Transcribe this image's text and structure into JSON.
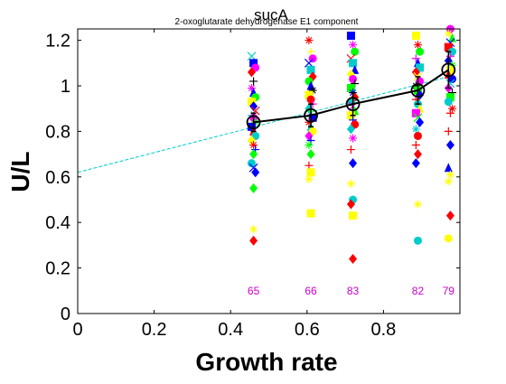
{
  "chart_data": {
    "type": "scatter",
    "title": "sucA",
    "subtitle": "2-oxoglutarate dehydrogenase E1 component",
    "xlabel": "Growth rate",
    "ylabel": "U/L",
    "xlim": [
      0,
      1
    ],
    "ylim": [
      0,
      1.25
    ],
    "xticks": [
      0,
      0.2,
      0.4,
      0.6,
      0.8
    ],
    "xtick_labels": [
      "0",
      "0.2",
      "0.4",
      "0.6",
      "0.8"
    ],
    "yticks": [
      0,
      0.2,
      0.4,
      0.6,
      0.8,
      1,
      1.2
    ],
    "ytick_labels": [
      "0",
      "0.2",
      "0.4",
      "0.6",
      "0.8",
      "1",
      "1.2"
    ],
    "grid": false,
    "colors": {
      "mean_line": "#000000",
      "fit_line": "#00cccc",
      "count_labels": "#cc00cc",
      "axis": "#000000"
    },
    "mean_series": {
      "x": [
        0.46,
        0.61,
        0.72,
        0.89,
        0.97
      ],
      "y": [
        0.84,
        0.87,
        0.92,
        0.98,
        1.07
      ],
      "err": [
        0.04,
        0.05,
        0.05,
        0.06,
        0.08
      ]
    },
    "fit_line": {
      "x": [
        0,
        0.97
      ],
      "y": [
        0.62,
        1.04
      ]
    },
    "counts": [
      {
        "x": 0.46,
        "label": "65"
      },
      {
        "x": 0.61,
        "label": "66"
      },
      {
        "x": 0.72,
        "label": "83"
      },
      {
        "x": 0.89,
        "label": "82"
      },
      {
        "x": 0.97,
        "label": "79"
      }
    ],
    "count_label_y": 0.1,
    "scatter_points": [
      {
        "x": 0.455,
        "y": 1.13,
        "m": "x",
        "c": "#00cccc"
      },
      {
        "x": 0.46,
        "y": 1.1,
        "m": "s",
        "c": "#0000ff"
      },
      {
        "x": 0.465,
        "y": 1.08,
        "m": "o",
        "c": "#ff00ff"
      },
      {
        "x": 0.455,
        "y": 1.06,
        "m": "d",
        "c": "#ff0000"
      },
      {
        "x": 0.46,
        "y": 1.02,
        "m": "+",
        "c": "#000000"
      },
      {
        "x": 0.455,
        "y": 0.99,
        "m": "*",
        "c": "#ff00ff"
      },
      {
        "x": 0.46,
        "y": 0.97,
        "m": "^",
        "c": "#0000ff"
      },
      {
        "x": 0.465,
        "y": 0.95,
        "m": "o",
        "c": "#00ff00"
      },
      {
        "x": 0.455,
        "y": 0.93,
        "m": "s",
        "c": "#ffff00"
      },
      {
        "x": 0.46,
        "y": 0.91,
        "m": "d",
        "c": "#0000ff"
      },
      {
        "x": 0.465,
        "y": 0.89,
        "m": "x",
        "c": "#ff0000"
      },
      {
        "x": 0.455,
        "y": 0.87,
        "m": "+",
        "c": "#00cccc"
      },
      {
        "x": 0.46,
        "y": 0.86,
        "m": "o",
        "c": "#ff00ff"
      },
      {
        "x": 0.465,
        "y": 0.84,
        "m": "*",
        "c": "#00ff00"
      },
      {
        "x": 0.455,
        "y": 0.82,
        "m": "s",
        "c": "#0000ff"
      },
      {
        "x": 0.46,
        "y": 0.8,
        "m": "^",
        "c": "#ff0000"
      },
      {
        "x": 0.465,
        "y": 0.78,
        "m": "o",
        "c": "#00cccc"
      },
      {
        "x": 0.455,
        "y": 0.76,
        "m": "d",
        "c": "#ffff00"
      },
      {
        "x": 0.46,
        "y": 0.74,
        "m": "*",
        "c": "#ff0000"
      },
      {
        "x": 0.465,
        "y": 0.72,
        "m": "+",
        "c": "#0000ff"
      },
      {
        "x": 0.46,
        "y": 0.7,
        "m": "d",
        "c": "#00ff00"
      },
      {
        "x": 0.455,
        "y": 0.66,
        "m": "o",
        "c": "#00cccc"
      },
      {
        "x": 0.46,
        "y": 0.64,
        "m": "x",
        "c": "#0000ff"
      },
      {
        "x": 0.465,
        "y": 0.62,
        "m": "d",
        "c": "#0000ff"
      },
      {
        "x": 0.46,
        "y": 0.55,
        "m": "d",
        "c": "#00ff00"
      },
      {
        "x": 0.46,
        "y": 0.37,
        "m": "*",
        "c": "#ffff00"
      },
      {
        "x": 0.46,
        "y": 0.32,
        "m": "d",
        "c": "#ff0000"
      },
      {
        "x": 0.605,
        "y": 1.2,
        "m": "*",
        "c": "#ff0000"
      },
      {
        "x": 0.61,
        "y": 1.15,
        "m": "+",
        "c": "#ffff00"
      },
      {
        "x": 0.615,
        "y": 1.12,
        "m": "o",
        "c": "#ff00ff"
      },
      {
        "x": 0.605,
        "y": 1.1,
        "m": "x",
        "c": "#0000ff"
      },
      {
        "x": 0.61,
        "y": 1.07,
        "m": "s",
        "c": "#00cccc"
      },
      {
        "x": 0.615,
        "y": 1.04,
        "m": "d",
        "c": "#ff0000"
      },
      {
        "x": 0.605,
        "y": 1.02,
        "m": "o",
        "c": "#00ff00"
      },
      {
        "x": 0.61,
        "y": 1.0,
        "m": "^",
        "c": "#0000ff"
      },
      {
        "x": 0.615,
        "y": 0.98,
        "m": "*",
        "c": "#000000"
      },
      {
        "x": 0.605,
        "y": 0.96,
        "m": "s",
        "c": "#ffff00"
      },
      {
        "x": 0.61,
        "y": 0.94,
        "m": "o",
        "c": "#ff0000"
      },
      {
        "x": 0.615,
        "y": 0.92,
        "m": "+",
        "c": "#ff00ff"
      },
      {
        "x": 0.605,
        "y": 0.9,
        "m": "d",
        "c": "#00cccc"
      },
      {
        "x": 0.61,
        "y": 0.88,
        "m": "x",
        "c": "#00ff00"
      },
      {
        "x": 0.615,
        "y": 0.86,
        "m": "s",
        "c": "#0000ff"
      },
      {
        "x": 0.605,
        "y": 0.84,
        "m": "*",
        "c": "#ff0000"
      },
      {
        "x": 0.61,
        "y": 0.82,
        "m": "^",
        "c": "#00cccc"
      },
      {
        "x": 0.615,
        "y": 0.8,
        "m": "o",
        "c": "#ffff00"
      },
      {
        "x": 0.605,
        "y": 0.78,
        "m": "d",
        "c": "#ff00ff"
      },
      {
        "x": 0.61,
        "y": 0.76,
        "m": "+",
        "c": "#0000ff"
      },
      {
        "x": 0.605,
        "y": 0.74,
        "m": "*",
        "c": "#00ff00"
      },
      {
        "x": 0.61,
        "y": 0.7,
        "m": "d",
        "c": "#00ff00"
      },
      {
        "x": 0.605,
        "y": 0.65,
        "m": "+",
        "c": "#ff0000"
      },
      {
        "x": 0.61,
        "y": 0.62,
        "m": "s",
        "c": "#ffff00"
      },
      {
        "x": 0.605,
        "y": 0.59,
        "m": "*",
        "c": "#ffff00"
      },
      {
        "x": 0.61,
        "y": 0.44,
        "m": "s",
        "c": "#ffff00"
      },
      {
        "x": 0.715,
        "y": 1.22,
        "m": "s",
        "c": "#0000ff"
      },
      {
        "x": 0.72,
        "y": 1.18,
        "m": "*",
        "c": "#ff00ff"
      },
      {
        "x": 0.725,
        "y": 1.15,
        "m": "o",
        "c": "#00ff00"
      },
      {
        "x": 0.715,
        "y": 1.12,
        "m": "x",
        "c": "#ff0000"
      },
      {
        "x": 0.72,
        "y": 1.1,
        "m": "s",
        "c": "#00cccc"
      },
      {
        "x": 0.725,
        "y": 1.07,
        "m": "^",
        "c": "#0000ff"
      },
      {
        "x": 0.715,
        "y": 1.05,
        "m": "d",
        "c": "#ffff00"
      },
      {
        "x": 0.72,
        "y": 1.03,
        "m": "o",
        "c": "#ff00ff"
      },
      {
        "x": 0.725,
        "y": 1.01,
        "m": "+",
        "c": "#000000"
      },
      {
        "x": 0.715,
        "y": 0.99,
        "m": "s",
        "c": "#00ff00"
      },
      {
        "x": 0.72,
        "y": 0.97,
        "m": "*",
        "c": "#0000ff"
      },
      {
        "x": 0.725,
        "y": 0.95,
        "m": "d",
        "c": "#ff0000"
      },
      {
        "x": 0.715,
        "y": 0.93,
        "m": "o",
        "c": "#00cccc"
      },
      {
        "x": 0.72,
        "y": 0.91,
        "m": "x",
        "c": "#ff00ff"
      },
      {
        "x": 0.725,
        "y": 0.89,
        "m": "^",
        "c": "#00ff00"
      },
      {
        "x": 0.715,
        "y": 0.87,
        "m": "s",
        "c": "#ffff00"
      },
      {
        "x": 0.72,
        "y": 0.85,
        "m": "+",
        "c": "#0000ff"
      },
      {
        "x": 0.725,
        "y": 0.83,
        "m": "o",
        "c": "#ff0000"
      },
      {
        "x": 0.715,
        "y": 0.81,
        "m": "d",
        "c": "#00cccc"
      },
      {
        "x": 0.72,
        "y": 0.77,
        "m": "*",
        "c": "#ff00ff"
      },
      {
        "x": 0.715,
        "y": 0.72,
        "m": "+",
        "c": "#ff0000"
      },
      {
        "x": 0.72,
        "y": 0.66,
        "m": "d",
        "c": "#0000ff"
      },
      {
        "x": 0.715,
        "y": 0.57,
        "m": "*",
        "c": "#ffff00"
      },
      {
        "x": 0.72,
        "y": 0.5,
        "m": "o",
        "c": "#00cccc"
      },
      {
        "x": 0.715,
        "y": 0.48,
        "m": "d",
        "c": "#ff0000"
      },
      {
        "x": 0.72,
        "y": 0.43,
        "m": "s",
        "c": "#ffff00"
      },
      {
        "x": 0.72,
        "y": 0.24,
        "m": "d",
        "c": "#ff0000"
      },
      {
        "x": 0.885,
        "y": 1.22,
        "m": "s",
        "c": "#ffff00"
      },
      {
        "x": 0.89,
        "y": 1.18,
        "m": "*",
        "c": "#ff0000"
      },
      {
        "x": 0.895,
        "y": 1.15,
        "m": "o",
        "c": "#00ff00"
      },
      {
        "x": 0.885,
        "y": 1.12,
        "m": "+",
        "c": "#ff00ff"
      },
      {
        "x": 0.89,
        "y": 1.1,
        "m": "^",
        "c": "#0000ff"
      },
      {
        "x": 0.895,
        "y": 1.08,
        "m": "s",
        "c": "#00cccc"
      },
      {
        "x": 0.885,
        "y": 1.06,
        "m": "d",
        "c": "#ff0000"
      },
      {
        "x": 0.89,
        "y": 1.04,
        "m": "x",
        "c": "#ffff00"
      },
      {
        "x": 0.895,
        "y": 1.02,
        "m": "o",
        "c": "#ff00ff"
      },
      {
        "x": 0.885,
        "y": 1.0,
        "m": "*",
        "c": "#000000"
      },
      {
        "x": 0.89,
        "y": 0.98,
        "m": "s",
        "c": "#00ff00"
      },
      {
        "x": 0.895,
        "y": 0.96,
        "m": "d",
        "c": "#0000ff"
      },
      {
        "x": 0.885,
        "y": 0.94,
        "m": "+",
        "c": "#ff0000"
      },
      {
        "x": 0.89,
        "y": 0.92,
        "m": "o",
        "c": "#00cccc"
      },
      {
        "x": 0.895,
        "y": 0.9,
        "m": "^",
        "c": "#ffff00"
      },
      {
        "x": 0.885,
        "y": 0.88,
        "m": "s",
        "c": "#ff00ff"
      },
      {
        "x": 0.89,
        "y": 0.86,
        "m": "x",
        "c": "#00ff00"
      },
      {
        "x": 0.895,
        "y": 0.84,
        "m": "d",
        "c": "#0000ff"
      },
      {
        "x": 0.885,
        "y": 0.81,
        "m": "*",
        "c": "#00cccc"
      },
      {
        "x": 0.89,
        "y": 0.78,
        "m": "o",
        "c": "#ff0000"
      },
      {
        "x": 0.885,
        "y": 0.74,
        "m": "+",
        "c": "#ff0000"
      },
      {
        "x": 0.89,
        "y": 0.7,
        "m": "d",
        "c": "#ff0000"
      },
      {
        "x": 0.885,
        "y": 0.66,
        "m": "d",
        "c": "#0000ff"
      },
      {
        "x": 0.89,
        "y": 0.48,
        "m": "*",
        "c": "#ffff00"
      },
      {
        "x": 0.89,
        "y": 0.32,
        "m": "o",
        "c": "#00cccc"
      },
      {
        "x": 0.975,
        "y": 1.25,
        "m": "o",
        "c": "#ff00ff"
      },
      {
        "x": 0.97,
        "y": 1.23,
        "m": "*",
        "c": "#ffff00"
      },
      {
        "x": 0.98,
        "y": 1.21,
        "m": "^",
        "c": "#00ff00"
      },
      {
        "x": 0.975,
        "y": 1.19,
        "m": "x",
        "c": "#0000ff"
      },
      {
        "x": 0.97,
        "y": 1.17,
        "m": "s",
        "c": "#ff0000"
      },
      {
        "x": 0.98,
        "y": 1.15,
        "m": "o",
        "c": "#00cccc"
      },
      {
        "x": 0.975,
        "y": 1.13,
        "m": "+",
        "c": "#ff00ff"
      },
      {
        "x": 0.97,
        "y": 1.11,
        "m": "d",
        "c": "#0000ff"
      },
      {
        "x": 0.98,
        "y": 1.09,
        "m": "*",
        "c": "#00ff00"
      },
      {
        "x": 0.975,
        "y": 1.07,
        "m": "s",
        "c": "#ffff00"
      },
      {
        "x": 0.97,
        "y": 1.05,
        "m": "^",
        "c": "#ff0000"
      },
      {
        "x": 0.98,
        "y": 1.03,
        "m": "o",
        "c": "#0000ff"
      },
      {
        "x": 0.975,
        "y": 1.01,
        "m": "x",
        "c": "#00cccc"
      },
      {
        "x": 0.97,
        "y": 0.99,
        "m": "d",
        "c": "#ff00ff"
      },
      {
        "x": 0.98,
        "y": 0.97,
        "m": "+",
        "c": "#000000"
      },
      {
        "x": 0.975,
        "y": 0.95,
        "m": "s",
        "c": "#00ff00"
      },
      {
        "x": 0.97,
        "y": 0.93,
        "m": "o",
        "c": "#00cccc"
      },
      {
        "x": 0.98,
        "y": 0.9,
        "m": "*",
        "c": "#ff0000"
      },
      {
        "x": 0.975,
        "y": 0.88,
        "m": "+",
        "c": "#ff0000"
      },
      {
        "x": 0.97,
        "y": 0.8,
        "m": "+",
        "c": "#ff0000"
      },
      {
        "x": 0.975,
        "y": 0.74,
        "m": "d",
        "c": "#0000ff"
      },
      {
        "x": 0.97,
        "y": 0.64,
        "m": "^",
        "c": "#0000ff"
      },
      {
        "x": 0.975,
        "y": 0.61,
        "m": "*",
        "c": "#ffff00"
      },
      {
        "x": 0.97,
        "y": 0.58,
        "m": "*",
        "c": "#ffff00"
      },
      {
        "x": 0.975,
        "y": 0.43,
        "m": "d",
        "c": "#ff0000"
      },
      {
        "x": 0.97,
        "y": 0.33,
        "m": "o",
        "c": "#ffff00"
      }
    ]
  }
}
